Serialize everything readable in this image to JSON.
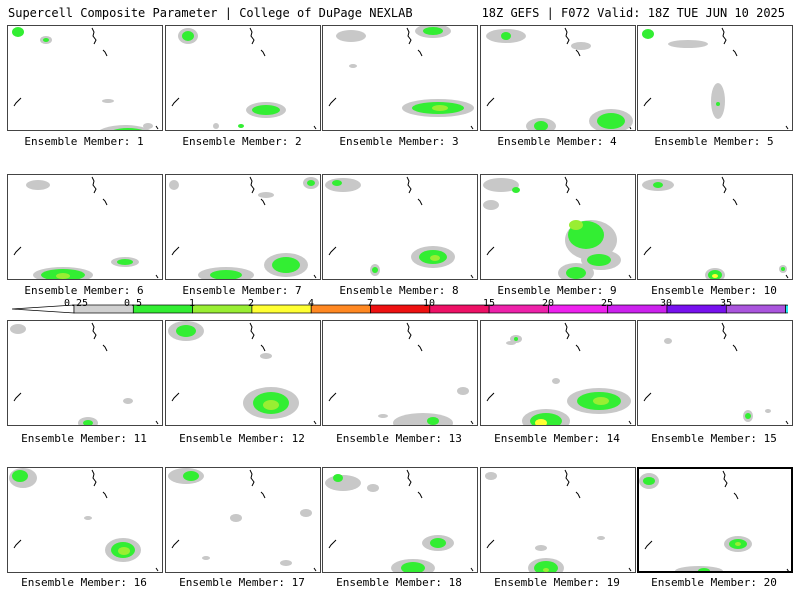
{
  "header": {
    "left": "Supercell Composite Parameter | College of DuPage NEXLAB",
    "right": "18Z GEFS | F072 Valid: 18Z TUE JUN 10 2025"
  },
  "colors": {
    "gray": "#c8c8c8",
    "green": "#33ee33",
    "lightgreen": "#99ee33",
    "yellow": "#ffff33"
  },
  "legend": {
    "ticks": [
      "0.25",
      "0.5",
      "1",
      "2",
      "4",
      "7",
      "10",
      "15",
      "20",
      "25",
      "30",
      "35"
    ],
    "colors": [
      "#d0d0d0",
      "#33ee33",
      "#99ee33",
      "#ffff33",
      "#ff8822",
      "#ee1111",
      "#ee1166",
      "#ee22aa",
      "#ee22ee",
      "#cc22ee",
      "#7711ee",
      "#aa55dd",
      "#22eeee"
    ]
  },
  "members": [
    {
      "label": "Ensemble Member: 1"
    },
    {
      "label": "Ensemble Member: 2"
    },
    {
      "label": "Ensemble Member: 3"
    },
    {
      "label": "Ensemble Member: 4"
    },
    {
      "label": "Ensemble Member: 5"
    },
    {
      "label": "Ensemble Member: 6"
    },
    {
      "label": "Ensemble Member: 7"
    },
    {
      "label": "Ensemble Member: 8"
    },
    {
      "label": "Ensemble Member: 9"
    },
    {
      "label": "Ensemble Member: 10"
    },
    {
      "label": "Ensemble Member: 11"
    },
    {
      "label": "Ensemble Member: 12"
    },
    {
      "label": "Ensemble Member: 13"
    },
    {
      "label": "Ensemble Member: 14"
    },
    {
      "label": "Ensemble Member: 15"
    },
    {
      "label": "Ensemble Member: 16"
    },
    {
      "label": "Ensemble Member: 17"
    },
    {
      "label": "Ensemble Member: 18"
    },
    {
      "label": "Ensemble Member: 19"
    },
    {
      "label": "Ensemble Member: 20"
    }
  ]
}
